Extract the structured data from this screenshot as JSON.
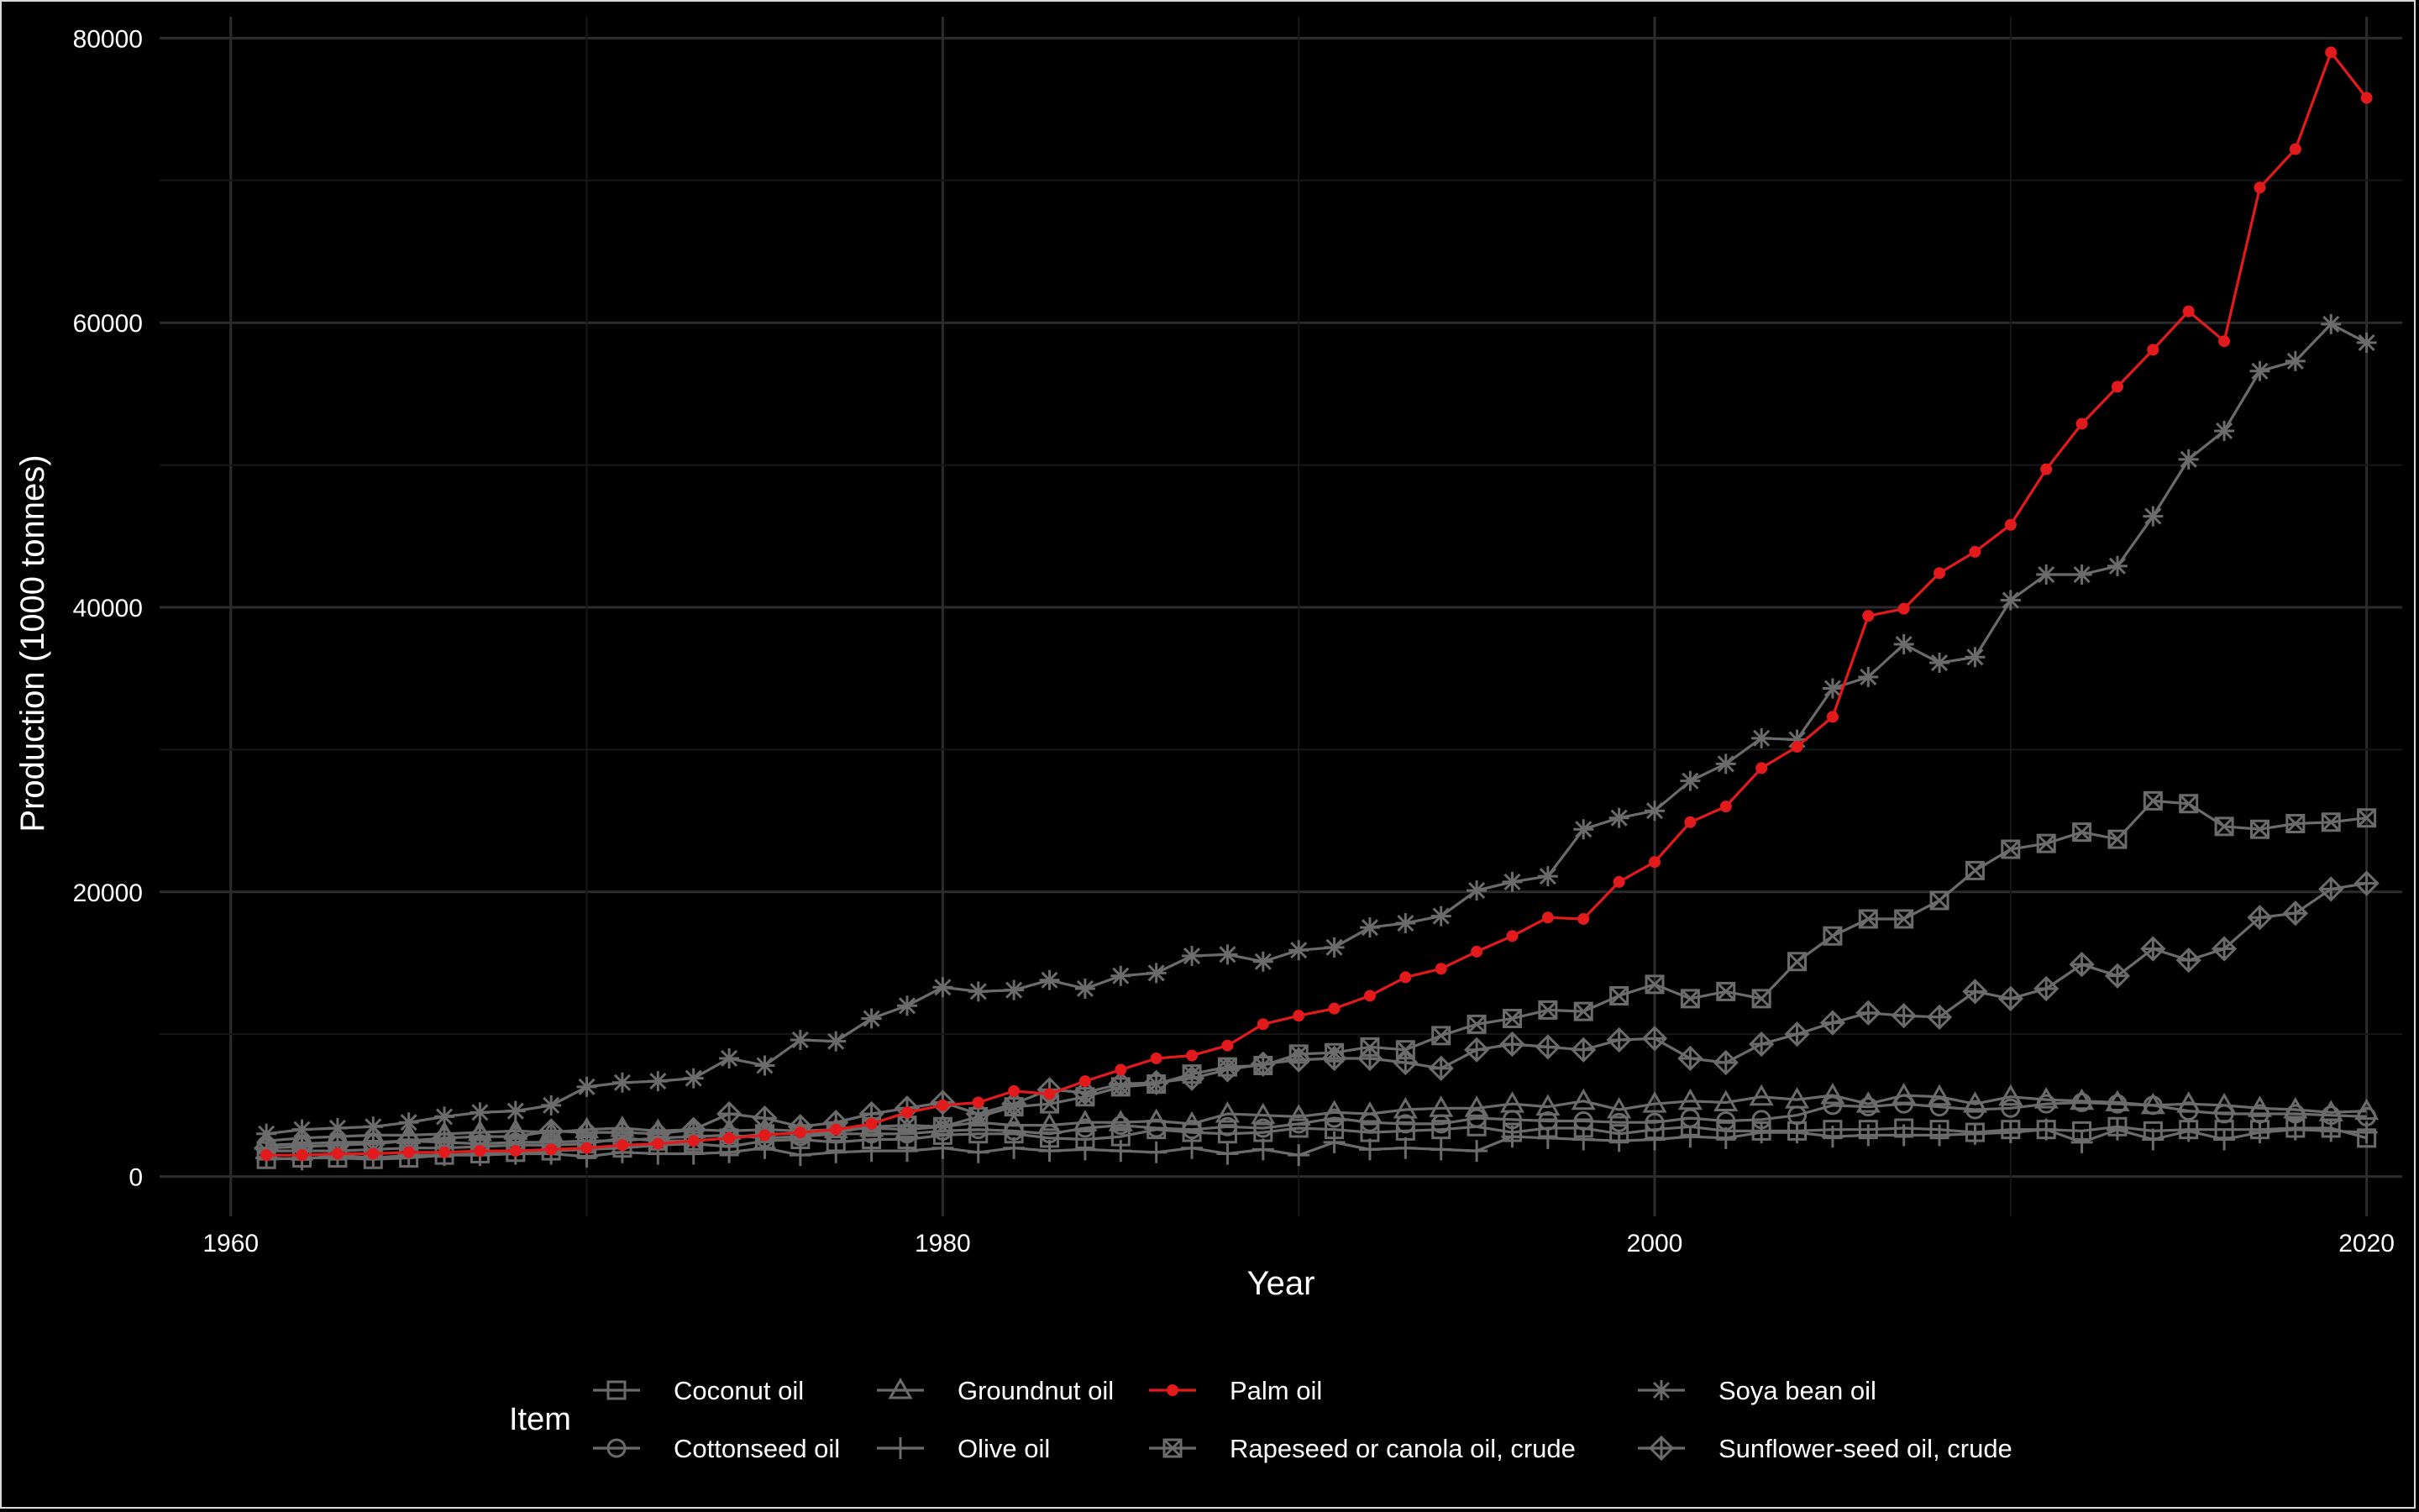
{
  "chart_data": {
    "type": "line",
    "xlabel": "Year",
    "ylabel": "Production (1000 tonnes)",
    "xlim": [
      1958,
      2021
    ],
    "ylim": [
      -2800,
      81500
    ],
    "x_ticks": [
      1960,
      1980,
      2000,
      2020
    ],
    "y_ticks": [
      0,
      20000,
      40000,
      60000,
      80000
    ],
    "grid": true,
    "legend": {
      "title": "Item",
      "placement": "bottom"
    },
    "colors": {
      "highlight": "#e31a1c",
      "muted": "#6b6b6b",
      "grid": "#2c2c2c",
      "background": "#000000",
      "text": "#ffffff"
    },
    "x": [
      1961,
      1962,
      1963,
      1964,
      1965,
      1966,
      1967,
      1968,
      1969,
      1970,
      1971,
      1972,
      1973,
      1974,
      1975,
      1976,
      1977,
      1978,
      1979,
      1980,
      1981,
      1982,
      1983,
      1984,
      1985,
      1986,
      1987,
      1988,
      1989,
      1990,
      1991,
      1992,
      1993,
      1994,
      1995,
      1996,
      1997,
      1998,
      1999,
      2000,
      2001,
      2002,
      2003,
      2004,
      2005,
      2006,
      2007,
      2008,
      2009,
      2010,
      2011,
      2012,
      2013,
      2014,
      2015,
      2016,
      2017,
      2018,
      2019,
      2020
    ],
    "series": [
      {
        "name": "Coconut oil",
        "marker": "square",
        "highlight": false,
        "values": [
          1200,
          1300,
          1300,
          1200,
          1300,
          1500,
          1600,
          1700,
          1800,
          1900,
          2000,
          2200,
          2300,
          2100,
          2500,
          2600,
          2400,
          2600,
          2600,
          2900,
          3000,
          3000,
          2700,
          2600,
          2800,
          3300,
          3100,
          3000,
          3100,
          3400,
          3300,
          3100,
          3200,
          3300,
          3500,
          3100,
          3400,
          3400,
          3000,
          3300,
          3500,
          3200,
          3200,
          3200,
          3300,
          3300,
          3400,
          3300,
          3100,
          3300,
          3300,
          3200,
          3500,
          3200,
          3300,
          3300,
          3300,
          3400,
          3400,
          2700
        ]
      },
      {
        "name": "Cottonseed oil",
        "marker": "circle",
        "highlight": false,
        "values": [
          2200,
          2300,
          2400,
          2400,
          2500,
          2400,
          2300,
          2400,
          2400,
          2500,
          2500,
          2700,
          2800,
          2900,
          2700,
          2800,
          3000,
          3000,
          3000,
          3200,
          3300,
          3200,
          3000,
          3400,
          3600,
          3400,
          3300,
          3500,
          3400,
          3700,
          4100,
          3800,
          3700,
          3700,
          4100,
          4000,
          3900,
          3900,
          3800,
          3800,
          4100,
          3900,
          4000,
          4300,
          5000,
          4900,
          5100,
          4900,
          4700,
          4800,
          5100,
          5200,
          5100,
          5000,
          4600,
          4400,
          4400,
          4400,
          4300,
          4200
        ]
      },
      {
        "name": "Groundnut oil",
        "marker": "triangle",
        "highlight": false,
        "values": [
          2500,
          2700,
          2800,
          2900,
          2900,
          3000,
          3100,
          3200,
          3100,
          3300,
          3400,
          3200,
          3300,
          3200,
          3300,
          3200,
          3300,
          3400,
          3300,
          3500,
          3800,
          3600,
          3600,
          3800,
          3800,
          3900,
          3700,
          4400,
          4300,
          4200,
          4500,
          4400,
          4700,
          4800,
          4800,
          5100,
          4900,
          5300,
          4700,
          5100,
          5300,
          5200,
          5600,
          5400,
          5700,
          5100,
          5700,
          5600,
          5100,
          5600,
          5400,
          5300,
          5200,
          5000,
          5100,
          5000,
          4800,
          4700,
          4500,
          4600
        ]
      },
      {
        "name": "Olive oil",
        "marker": "plus",
        "highlight": false,
        "values": [
          1300,
          1200,
          1500,
          1300,
          1500,
          1500,
          1500,
          1600,
          1600,
          1400,
          1700,
          1600,
          1600,
          1700,
          2000,
          1500,
          1700,
          1800,
          1800,
          2000,
          1700,
          2000,
          1800,
          1900,
          1800,
          1700,
          2000,
          1600,
          1900,
          1500,
          2400,
          1900,
          2000,
          1900,
          1800,
          2800,
          2700,
          2600,
          2500,
          2600,
          2800,
          2700,
          3100,
          3100,
          2800,
          2900,
          2900,
          2900,
          3000,
          3100,
          3300,
          2400,
          3300,
          2600,
          3200,
          2600,
          3100,
          3300,
          3200,
          3100
        ]
      },
      {
        "name": "Palm oil",
        "marker": "dot",
        "highlight": true,
        "values": [
          1500,
          1500,
          1600,
          1600,
          1700,
          1700,
          1800,
          1800,
          1900,
          2000,
          2200,
          2300,
          2500,
          2700,
          2900,
          3100,
          3300,
          3700,
          4500,
          5000,
          5200,
          6000,
          5800,
          6700,
          7500,
          8300,
          8500,
          9200,
          10700,
          11300,
          11800,
          12700,
          14000,
          14600,
          15800,
          16900,
          18200,
          18100,
          20700,
          22100,
          24900,
          26000,
          28700,
          30200,
          32300,
          39400,
          39900,
          42400,
          43900,
          45800,
          49700,
          52900,
          55500,
          58100,
          60800,
          58700,
          69500,
          72200,
          79000,
          75800
        ]
      },
      {
        "name": "Rapeseed or canola oil, crude",
        "marker": "square-x",
        "highlight": false,
        "values": [
          1800,
          1800,
          1800,
          1900,
          2000,
          2000,
          2100,
          2200,
          2200,
          2300,
          2700,
          2500,
          2500,
          2700,
          3000,
          3000,
          3100,
          3500,
          3600,
          3500,
          4200,
          4900,
          5100,
          5600,
          6300,
          6500,
          7200,
          7700,
          7800,
          8600,
          8700,
          9100,
          8900,
          9900,
          10700,
          11100,
          11700,
          11600,
          12700,
          13500,
          12500,
          13000,
          12500,
          15100,
          16900,
          18100,
          18100,
          19400,
          21500,
          23000,
          23400,
          24200,
          23700,
          26400,
          26200,
          24600,
          24400,
          24800,
          24900,
          25200
        ]
      },
      {
        "name": "Soya bean oil",
        "marker": "star",
        "highlight": false,
        "values": [
          3000,
          3300,
          3400,
          3500,
          3800,
          4200,
          4500,
          4600,
          5000,
          6300,
          6600,
          6700,
          6900,
          8300,
          7800,
          9600,
          9500,
          11100,
          12000,
          13300,
          13000,
          13100,
          13800,
          13200,
          14100,
          14300,
          15500,
          15600,
          15100,
          15900,
          16100,
          17500,
          17800,
          18300,
          20100,
          20700,
          21100,
          24400,
          25200,
          25700,
          27800,
          29000,
          30800,
          30700,
          34300,
          35100,
          37400,
          36100,
          36500,
          40500,
          42300,
          42300,
          42900,
          46400,
          50400,
          52400,
          56600,
          57300,
          59900,
          58600
        ]
      },
      {
        "name": "Sunflower-seed oil, crude",
        "marker": "diamond",
        "highlight": false,
        "values": [
          2000,
          2100,
          2200,
          2300,
          2500,
          2700,
          2800,
          2800,
          3200,
          3100,
          3100,
          3000,
          3300,
          4400,
          4100,
          3500,
          3800,
          4400,
          4800,
          5200,
          4400,
          5100,
          6100,
          5900,
          6500,
          6600,
          6900,
          7500,
          7900,
          8200,
          8300,
          8300,
          8000,
          7600,
          8900,
          9300,
          9100,
          8900,
          9600,
          9700,
          8300,
          8000,
          9300,
          10000,
          10800,
          11500,
          11300,
          11200,
          13000,
          12500,
          13200,
          14900,
          14100,
          16000,
          15200,
          16000,
          18200,
          18500,
          20200,
          20600
        ]
      }
    ]
  }
}
